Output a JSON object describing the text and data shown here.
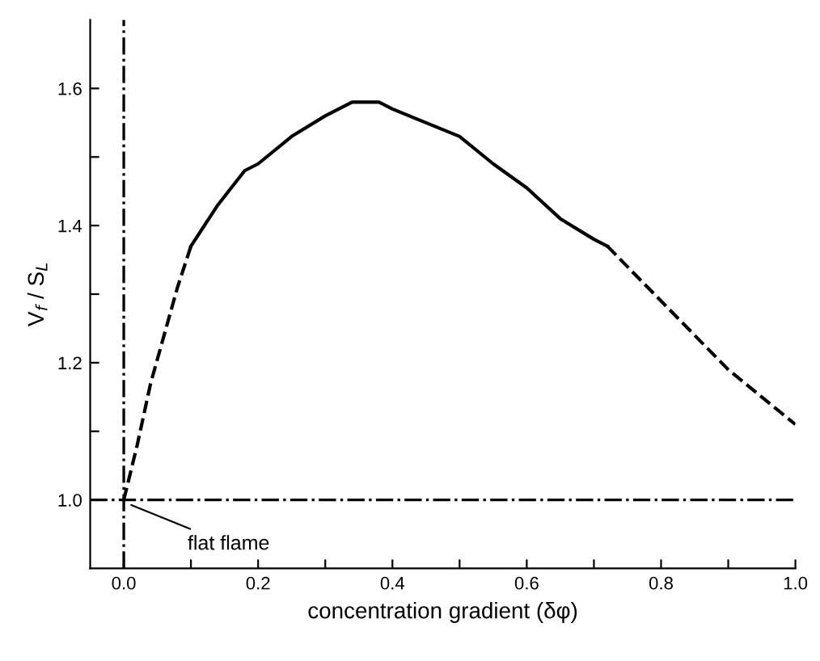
{
  "chart_data": {
    "type": "line",
    "xlabel": "concentration gradient (δφ)",
    "ylabel": "V$_{f}$ / S$_{L}$",
    "series": [
      {
        "color": "#000000",
        "line_style": "dashed",
        "x": [
          0.0,
          0.02,
          0.04,
          0.06,
          0.08,
          0.1
        ],
        "values": [
          1.0,
          1.08,
          1.17,
          1.24,
          1.31,
          1.37
        ]
      },
      {
        "color": "#000000",
        "line_style": "solid",
        "x": [
          0.1,
          0.14,
          0.18,
          0.2,
          0.25,
          0.3,
          0.34,
          0.38,
          0.4,
          0.45,
          0.5,
          0.55,
          0.6,
          0.65,
          0.7,
          0.72
        ],
        "values": [
          1.37,
          1.43,
          1.48,
          1.49,
          1.53,
          1.56,
          1.58,
          1.58,
          1.57,
          1.55,
          1.53,
          1.49,
          1.455,
          1.41,
          1.38,
          1.37
        ]
      },
      {
        "color": "#000000",
        "line_style": "dashed",
        "x": [
          0.72,
          0.8,
          0.9,
          1.0
        ],
        "values": [
          1.37,
          1.29,
          1.19,
          1.11
        ]
      }
    ],
    "ref_lines": [
      {
        "axis": "x",
        "value": 0,
        "line_style": "dashdot",
        "color": "#000000"
      },
      {
        "axis": "y",
        "value": 1.0,
        "line_style": "dashdot",
        "color": "#000000"
      }
    ],
    "annotations": [
      {
        "text": "flat flame",
        "x": 0.005,
        "y": 0.995
      }
    ],
    "xlim": [
      -0.05,
      1.0
    ],
    "ylim": [
      0.9,
      1.7
    ],
    "xticks": [
      {
        "value": 0,
        "label": "0.0"
      },
      {
        "value": 0.1,
        "label": null
      },
      {
        "value": 0.2,
        "label": "0.2"
      },
      {
        "value": 0.3,
        "label": null
      },
      {
        "value": 0.4,
        "label": "0.4"
      },
      {
        "value": 0.5,
        "label": null
      },
      {
        "value": 0.6,
        "label": "0.6"
      },
      {
        "value": 0.7,
        "label": null
      },
      {
        "value": 0.8,
        "label": "0.8"
      },
      {
        "value": 0.9,
        "label": null
      },
      {
        "value": 1.0,
        "label": "1.0"
      }
    ],
    "yticks": [
      {
        "value": 1.0,
        "label": "1.0"
      },
      {
        "value": 1.1,
        "label": null
      },
      {
        "value": 1.2,
        "label": "1.2"
      },
      {
        "value": 1.3,
        "label": null
      },
      {
        "value": 1.4,
        "label": "1.4"
      },
      {
        "value": 1.5,
        "label": null
      },
      {
        "value": 1.6,
        "label": "1.6"
      }
    ],
    "grid": false,
    "legend": false
  }
}
